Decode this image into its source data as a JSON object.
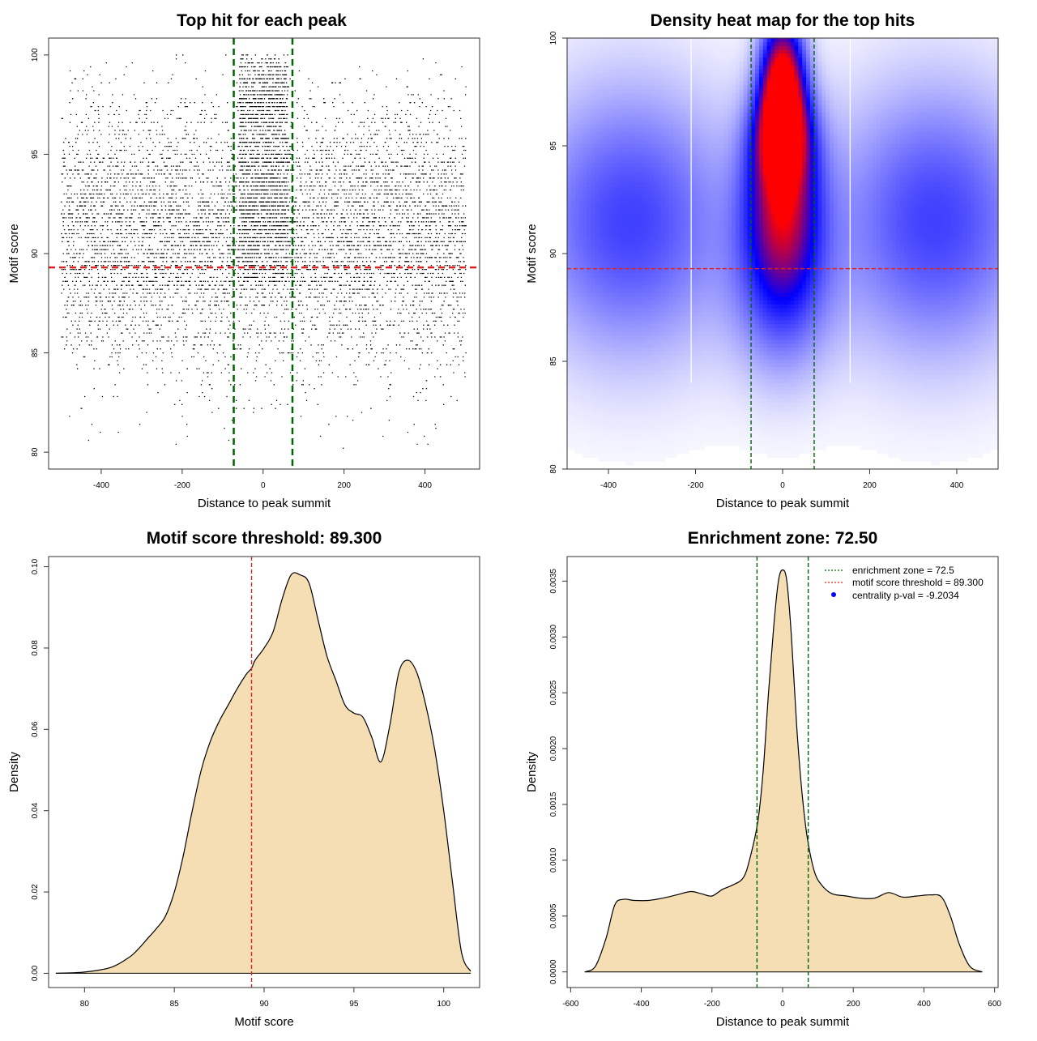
{
  "chart_data": [
    {
      "type": "scatter",
      "title": "Top hit for each peak",
      "xlabel": "Distance to peak summit",
      "ylabel": "Motif score",
      "xlim": [
        -530,
        535
      ],
      "ylim": [
        79.15,
        100.85
      ],
      "xticks": [
        -400,
        -200,
        0,
        200,
        400
      ],
      "yticks": [
        80,
        85,
        90,
        95,
        100
      ],
      "xticklabels": [
        "-400",
        "-200",
        "0",
        "200",
        "400"
      ],
      "yticklabels": [
        "80",
        "85",
        "90",
        "95",
        "100"
      ],
      "points_summary": {
        "x_range": [
          -500,
          500
        ],
        "y_range": [
          80,
          100
        ],
        "n_background": 7000,
        "n_central": 1800,
        "central_x_range": [
          -60,
          60
        ],
        "central_y_peak": 92.5
      },
      "vlines": [
        -72.5,
        72.5
      ],
      "vline_color": "#006400",
      "hline": 89.3,
      "hline_color": "#dd2222"
    },
    {
      "type": "heatmap",
      "title": "Density heat map for the top hits",
      "xlabel": "Distance to peak summit",
      "ylabel": "Motif score",
      "xlim": [
        -495,
        495
      ],
      "ylim": [
        80,
        100
      ],
      "xticks": [
        -400,
        -200,
        0,
        200,
        400
      ],
      "yticks": [
        80,
        85,
        90,
        95,
        100
      ],
      "xticklabels": [
        "-400",
        "-200",
        "0",
        "200",
        "400"
      ],
      "yticklabels": [
        "80",
        "85",
        "90",
        "95",
        "100"
      ],
      "color_scale": [
        "#ffffff",
        "#0000ff",
        "#ff0000"
      ],
      "blobs": [
        {
          "x": 0,
          "y": 98.0,
          "sx": 35,
          "sy": 2.2,
          "w": 1.0
        },
        {
          "x": 0,
          "y": 95.5,
          "sx": 45,
          "sy": 1.6,
          "w": 0.6
        },
        {
          "x": 0,
          "y": 92.5,
          "sx": 60,
          "sy": 3.0,
          "w": 0.75
        },
        {
          "x": -350,
          "y": 91.5,
          "sx": 170,
          "sy": 4.5,
          "w": 0.45
        },
        {
          "x": 350,
          "y": 91.5,
          "sx": 170,
          "sy": 4.5,
          "w": 0.45
        },
        {
          "x": 0,
          "y": 88.0,
          "sx": 80,
          "sy": 3.0,
          "w": 0.3
        }
      ],
      "white_lines": [
        -210,
        155
      ],
      "vlines": [
        -72.5,
        72.5
      ],
      "vline_color": "#006400",
      "hline": 89.3,
      "hline_color": "#dd2222"
    },
    {
      "type": "area",
      "title": "Motif score threshold: 89.300",
      "xlabel": "Motif score",
      "ylabel": "Density",
      "xlim": [
        78,
        102
      ],
      "ylim": [
        -0.0035,
        0.1025
      ],
      "xticks": [
        80,
        85,
        90,
        95,
        100
      ],
      "yticks": [
        0.0,
        0.02,
        0.04,
        0.06,
        0.08,
        0.1
      ],
      "xticklabels": [
        "80",
        "85",
        "90",
        "95",
        "100"
      ],
      "yticklabels": [
        "0.00",
        "0.02",
        "0.04",
        "0.06",
        "0.08",
        "0.10"
      ],
      "x": [
        78.4,
        80.0,
        81.5,
        82.5,
        83.0,
        83.5,
        84.0,
        84.5,
        85.0,
        85.5,
        86.0,
        86.5,
        87.0,
        87.5,
        88.0,
        88.5,
        89.0,
        89.3,
        89.5,
        90.0,
        90.5,
        91.0,
        91.5,
        92.0,
        92.5,
        93.0,
        93.5,
        94.0,
        94.5,
        95.0,
        95.5,
        96.0,
        96.5,
        97.0,
        97.5,
        98.0,
        98.5,
        99.0,
        99.5,
        100.0,
        100.5,
        101.0,
        101.5
      ],
      "y": [
        0.0,
        0.0003,
        0.0015,
        0.004,
        0.006,
        0.0085,
        0.011,
        0.014,
        0.02,
        0.029,
        0.04,
        0.05,
        0.057,
        0.062,
        0.066,
        0.07,
        0.0735,
        0.075,
        0.077,
        0.08,
        0.084,
        0.092,
        0.098,
        0.098,
        0.096,
        0.087,
        0.078,
        0.072,
        0.066,
        0.064,
        0.063,
        0.058,
        0.052,
        0.061,
        0.074,
        0.077,
        0.074,
        0.066,
        0.055,
        0.04,
        0.022,
        0.005,
        0.0005
      ],
      "fill": "#f5deb3",
      "vlines": [
        89.3
      ],
      "vline_color": "#dd2222"
    },
    {
      "type": "area",
      "title": "Enrichment zone: 72.50",
      "xlabel": "Distance to peak summit",
      "ylabel": "Density",
      "xlim": [
        -610,
        610
      ],
      "ylim": [
        -0.00014,
        0.00372
      ],
      "xticks": [
        -600,
        -400,
        -200,
        0,
        200,
        400,
        600
      ],
      "yticks": [
        0.0,
        0.0005,
        0.001,
        0.0015,
        0.002,
        0.0025,
        0.003,
        0.0035
      ],
      "xticklabels": [
        "-600",
        "-400",
        "-200",
        "0",
        "200",
        "400",
        "600"
      ],
      "yticklabels": [
        "0.0000",
        "0.0005",
        "0.0010",
        "0.0015",
        "0.0020",
        "0.0025",
        "0.0030",
        "0.0035"
      ],
      "x": [
        -560,
        -530,
        -500,
        -475,
        -450,
        -420,
        -380,
        -340,
        -300,
        -260,
        -230,
        -200,
        -170,
        -140,
        -110,
        -90,
        -70,
        -55,
        -40,
        -25,
        -12,
        0,
        12,
        25,
        40,
        55,
        70,
        90,
        110,
        140,
        180,
        220,
        260,
        300,
        340,
        380,
        420,
        450,
        475,
        500,
        530,
        565
      ],
      "y": [
        0.0,
        5e-05,
        0.0003,
        0.0006,
        0.00065,
        0.00064,
        0.00064,
        0.00066,
        0.00069,
        0.00072,
        0.0007,
        0.00068,
        0.00074,
        0.00078,
        0.00085,
        0.00105,
        0.00135,
        0.0018,
        0.0025,
        0.0031,
        0.0035,
        0.0036,
        0.0035,
        0.003,
        0.0022,
        0.0016,
        0.0012,
        0.0009,
        0.00078,
        0.0007,
        0.00068,
        0.00066,
        0.00066,
        0.00071,
        0.00067,
        0.00068,
        0.00069,
        0.00067,
        0.0005,
        0.00025,
        5e-05,
        0.0
      ],
      "fill": "#f5deb3",
      "vlines": [
        -72.5,
        72.5
      ],
      "vline_color": "#006400",
      "legend": [
        {
          "label": "enrichment zone = 72.5",
          "style": "dotted-line",
          "color": "#006400"
        },
        {
          "label": "motif score threshold = 89.300",
          "style": "dotted-line",
          "color": "#dd2222"
        },
        {
          "label": "centrality p-val = -9.2034",
          "style": "point",
          "color": "#0000ff"
        }
      ],
      "legend_position": "top-right"
    }
  ]
}
